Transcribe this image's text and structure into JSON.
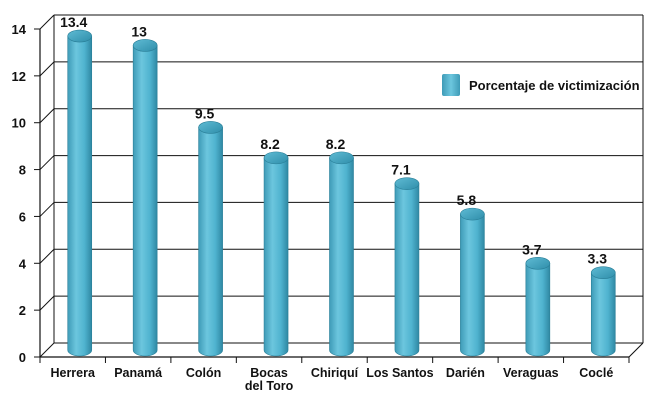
{
  "chart_data": {
    "type": "bar",
    "categories": [
      "Herrera",
      "Panamá",
      "Colón",
      "Bocas del Toro",
      "Chiriquí",
      "Los Santos",
      "Darién",
      "Veraguas",
      "Coclé"
    ],
    "category_lines": [
      [
        "Herrera"
      ],
      [
        "Panamá"
      ],
      [
        "Colón"
      ],
      [
        "Bocas",
        "del Toro"
      ],
      [
        "Chiriquí"
      ],
      [
        "Los Santos"
      ],
      [
        "Darién"
      ],
      [
        "Veraguas"
      ],
      [
        "Coclé"
      ]
    ],
    "series": [
      {
        "name": "Porcentaje de victimización",
        "values": [
          13.4,
          13,
          9.5,
          8.2,
          8.2,
          7.1,
          5.8,
          3.7,
          3.3
        ],
        "labels": [
          "13.4",
          "13",
          "9.5",
          "8.2",
          "8.2",
          "7.1",
          "5.8",
          "3.7",
          "3.3"
        ],
        "color": "#4fb3cf"
      }
    ],
    "yticks": [
      "0",
      "2",
      "4",
      "6",
      "8",
      "10",
      "12",
      "14"
    ],
    "ylim": [
      0,
      14
    ],
    "grid": true,
    "legend_position": "top-right",
    "style": "3d-cylinder"
  }
}
